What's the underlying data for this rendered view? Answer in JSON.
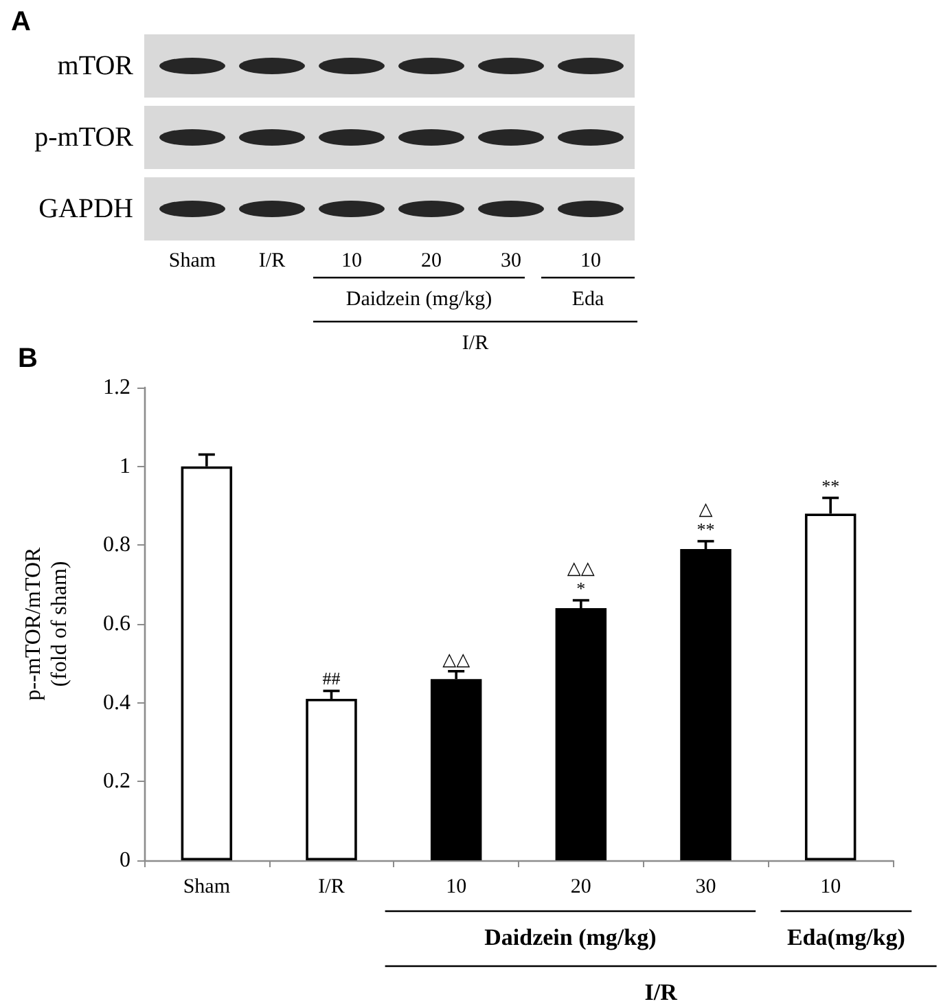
{
  "chart_data": [
    {
      "type": "other",
      "title": "A",
      "categories": [
        "Sham",
        "I/R",
        "10",
        "20",
        "30",
        "10"
      ],
      "y_categories": [
        "mTOR",
        "p-mTOR",
        "GAPDH"
      ],
      "annotations": [
        "Daidzein (mg/kg)",
        "Eda",
        "I/R"
      ]
    },
    {
      "type": "bar",
      "title": "B",
      "ylabel": "p--mTOR/mTOR\n(fold of sham)",
      "categories": [
        "Sham",
        "I/R",
        "10",
        "20",
        "30",
        "10"
      ],
      "values": [
        1,
        0.41,
        0.46,
        0.64,
        0.79,
        0.88
      ],
      "colors": [
        "#ffffff",
        "#ffffff",
        "#000000",
        "#000000",
        "#000000",
        "#ffffff"
      ],
      "errors": [
        [
          1,
          1.03
        ],
        [
          0.41,
          0.43
        ],
        [
          0.46,
          0.48
        ],
        [
          0.64,
          0.66
        ],
        [
          0.79,
          0.81
        ],
        [
          0.88,
          0.92
        ]
      ],
      "ylim": [
        0,
        1.2
      ],
      "yticks": [
        0,
        0.2,
        0.4,
        0.6,
        0.8,
        1,
        1.2
      ],
      "annotations": [
        "Daidzein (mg/kg)",
        "Eda(mg/kg)",
        "I/R",
        "##",
        "△△",
        "*",
        "△△",
        "**",
        "△",
        "**"
      ]
    }
  ]
}
